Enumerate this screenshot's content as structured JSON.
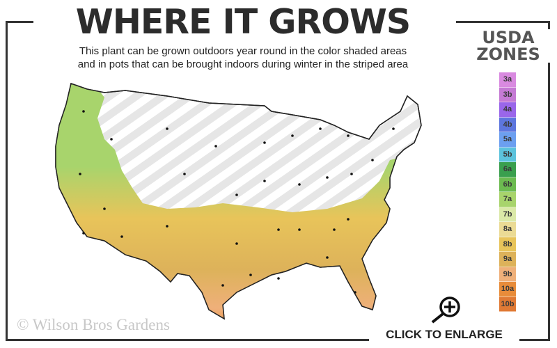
{
  "header": {
    "title": "WHERE IT GROWS",
    "subtitle_line1": "This plant can be grown outdoors year round in the color shaded areas",
    "subtitle_line2": "and in pots that can be brought indoors during winter in the striped area"
  },
  "legend": {
    "title_line1": "USDA",
    "title_line2": "ZONES",
    "zones": [
      {
        "label": "3a",
        "color": "#d98ae0"
      },
      {
        "label": "3b",
        "color": "#c57ad4"
      },
      {
        "label": "4a",
        "color": "#9a66ea"
      },
      {
        "label": "4b",
        "color": "#5d76de"
      },
      {
        "label": "5a",
        "color": "#6c9ff0"
      },
      {
        "label": "5b",
        "color": "#5cc3dc"
      },
      {
        "label": "6a",
        "color": "#3a9f4e"
      },
      {
        "label": "6b",
        "color": "#6cbb50"
      },
      {
        "label": "7a",
        "color": "#a8d46c"
      },
      {
        "label": "7b",
        "color": "#dbe9a8"
      },
      {
        "label": "8a",
        "color": "#ebdb95"
      },
      {
        "label": "8b",
        "color": "#e8c45a"
      },
      {
        "label": "9a",
        "color": "#ddb25a"
      },
      {
        "label": "9b",
        "color": "#efb07a"
      },
      {
        "label": "10a",
        "color": "#e88c3a"
      },
      {
        "label": "10b",
        "color": "#e07a35"
      }
    ]
  },
  "map": {
    "shaded_zones": [
      "7a",
      "7b",
      "8a",
      "8b",
      "9a",
      "9b",
      "10a",
      "10b"
    ],
    "striped_area": "pots indoors in winter"
  },
  "footer": {
    "copyright": "© Wilson Bros Gardens",
    "enlarge_label": "CLICK TO ENLARGE",
    "enlarge_icon": "magnifier-plus-icon"
  }
}
